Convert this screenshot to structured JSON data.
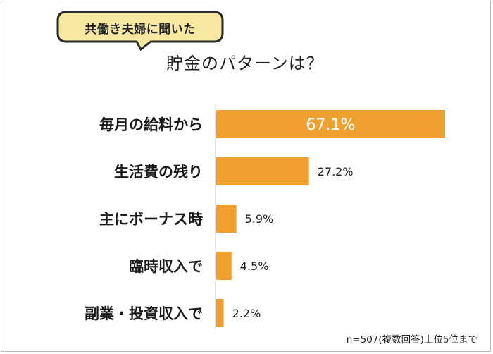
{
  "bubble_text": "共働き夫婦に聞いた",
  "title": "貯金のパターンは？",
  "footnote": "n=507(複数回答)上位5位まで",
  "colors": {
    "bar": "#f0a030",
    "bubble_fill": "#f7e7a1",
    "bubble_border": "#2b2b2b"
  },
  "chart_data": {
    "type": "bar",
    "orientation": "horizontal",
    "categories": [
      "毎月の給料から",
      "生活費の残り",
      "主にボーナス時",
      "臨時収入で",
      "副業・投資収入で"
    ],
    "values": [
      67.1,
      27.2,
      5.9,
      4.5,
      2.2
    ],
    "value_labels": [
      "67.1%",
      "27.2%",
      "5.9%",
      "4.5%",
      "2.2%"
    ],
    "unit": "%",
    "xlim": [
      0,
      67.1
    ],
    "grid": false,
    "legend": "none"
  }
}
